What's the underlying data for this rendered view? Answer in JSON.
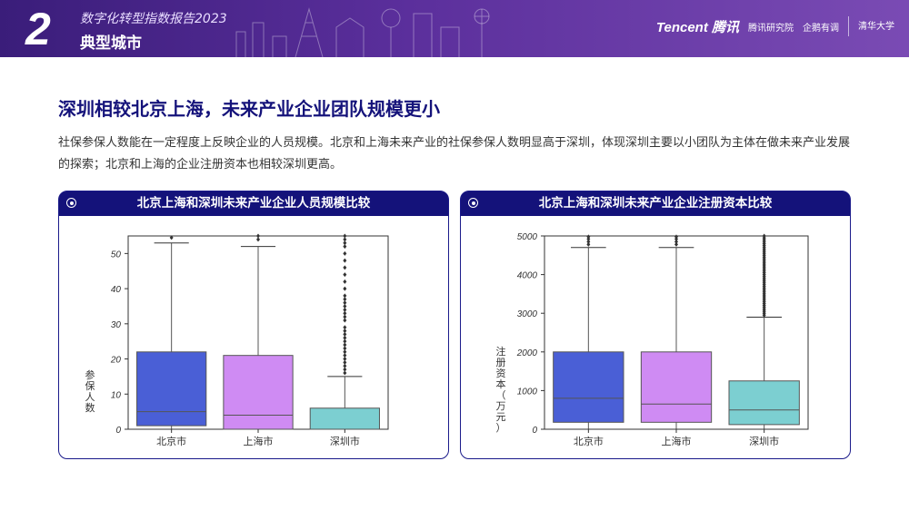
{
  "header": {
    "section_number": "2",
    "report_title": "数字化转型指数报告2023",
    "section_title": "典型城市",
    "logos": [
      "Tencent 腾讯",
      "腾讯研究院",
      "企鹅有调",
      "清华大学"
    ]
  },
  "main": {
    "heading": "深圳相较北京上海，未来产业企业团队规模更小",
    "paragraph": "社保参保人数能在一定程度上反映企业的人员规模。北京和上海未来产业的社保参保人数明显高于深圳，体现深圳主要以小团队为主体在做未来产业发展的探索；北京和上海的企业注册资本也相较深圳更高。"
  },
  "colors": {
    "beijing": "#4a5fd6",
    "shanghai": "#cf8bf3",
    "shenzhen": "#7ccfd1",
    "navy": "#14127a"
  },
  "chart_data": [
    {
      "type": "box",
      "title": "北京上海和深圳未来产业企业人员规模比较",
      "ylabel": "参保人数",
      "xlabel": "",
      "ylim": [
        0,
        55
      ],
      "yticks": [
        0,
        10,
        20,
        30,
        40,
        50
      ],
      "categories": [
        "北京市",
        "上海市",
        "深圳市"
      ],
      "boxes": [
        {
          "name": "北京市",
          "whisker_low": 0,
          "q1": 1,
          "median": 5,
          "q3": 22,
          "whisker_high": 53,
          "outliers": [
            54.5
          ]
        },
        {
          "name": "上海市",
          "whisker_low": 0,
          "q1": 0,
          "median": 4,
          "q3": 21,
          "whisker_high": 52,
          "outliers": [
            54,
            55
          ]
        },
        {
          "name": "深圳市",
          "whisker_low": 0,
          "q1": 0,
          "median": 0,
          "q3": 6,
          "whisker_high": 15,
          "outliers": [
            16,
            17,
            18,
            19,
            20,
            21,
            22,
            23,
            24,
            25,
            26,
            27,
            28,
            29,
            31,
            32,
            33,
            34,
            35,
            36,
            37,
            38,
            40,
            42,
            44,
            46,
            48,
            50,
            52,
            53,
            54,
            55
          ]
        }
      ]
    },
    {
      "type": "box",
      "title": "北京上海和深圳未来产业企业注册资本比较",
      "ylabel": "注册资本（万元）",
      "xlabel": "",
      "ylim": [
        0,
        5000
      ],
      "yticks": [
        0,
        1000,
        2000,
        3000,
        4000,
        5000
      ],
      "categories": [
        "北京市",
        "上海市",
        "深圳市"
      ],
      "boxes": [
        {
          "name": "北京市",
          "whisker_low": 0,
          "q1": 180,
          "median": 800,
          "q3": 2000,
          "whisker_high": 4700,
          "outliers": [
            4780,
            4850,
            4920,
            4980
          ]
        },
        {
          "name": "上海市",
          "whisker_low": 0,
          "q1": 180,
          "median": 650,
          "q3": 2000,
          "whisker_high": 4700,
          "outliers": [
            4780,
            4850,
            4920,
            4980
          ]
        },
        {
          "name": "深圳市",
          "whisker_low": 0,
          "q1": 120,
          "median": 500,
          "q3": 1250,
          "whisker_high": 2900,
          "outliers": [
            2950,
            3000,
            3050,
            3100,
            3150,
            3200,
            3250,
            3300,
            3350,
            3400,
            3450,
            3500,
            3550,
            3600,
            3650,
            3700,
            3750,
            3800,
            3850,
            3900,
            3950,
            4000,
            4050,
            4100,
            4150,
            4200,
            4250,
            4300,
            4350,
            4400,
            4450,
            4500,
            4550,
            4600,
            4650,
            4700,
            4750,
            4800,
            4850,
            4900,
            4950,
            5000
          ]
        }
      ]
    }
  ]
}
